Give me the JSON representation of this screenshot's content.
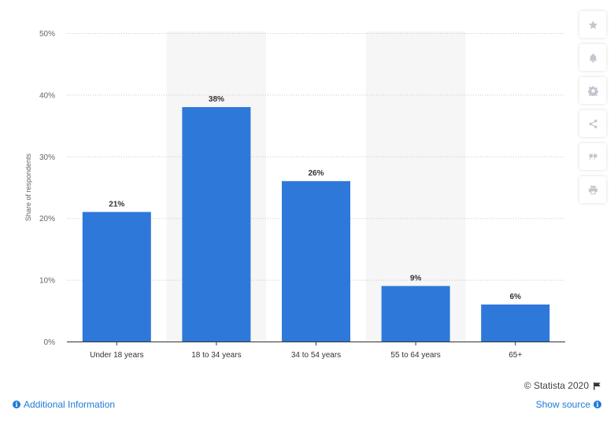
{
  "chart_data": {
    "type": "bar",
    "categories": [
      "Under 18 years",
      "18 to 34 years",
      "34 to 54 years",
      "55 to 64 years",
      "65+"
    ],
    "values": [
      21,
      38,
      26,
      9,
      6
    ],
    "value_labels": [
      "21%",
      "38%",
      "26%",
      "9%",
      "6%"
    ],
    "ylabel": "Share of respondents",
    "ylim": [
      0,
      50
    ],
    "yticks": [
      0,
      10,
      20,
      30,
      40,
      50
    ],
    "ytick_labels": [
      "0%",
      "10%",
      "20%",
      "30%",
      "40%",
      "50%"
    ],
    "grid": true,
    "bar_color": "#2e78d9",
    "band_color": "#f6f6f6",
    "shaded_categories": [
      1,
      3
    ]
  },
  "footer": {
    "credit": "© Statista 2020",
    "additional_info": "Additional Information",
    "show_source": "Show source"
  },
  "sidebar_icons": [
    "star-icon",
    "bell-icon",
    "gear-icon",
    "share-icon",
    "quote-icon",
    "print-icon"
  ]
}
